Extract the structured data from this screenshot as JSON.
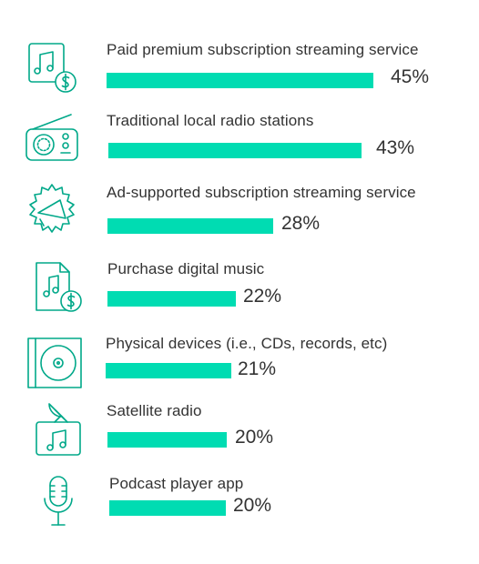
{
  "colors": {
    "bar": "#00dcb2",
    "icon_stroke": "#00a889",
    "text": "#333333"
  },
  "chart_data": {
    "type": "bar",
    "orientation": "horizontal",
    "categories": [
      "Paid premium subscription streaming service",
      "Traditional local radio stations",
      "Ad-supported subscription streaming service",
      "Purchase digital music",
      "Physical devices (i.e., CDs, records, etc)",
      "Satellite radio",
      "Podcast player app"
    ],
    "values": [
      45,
      43,
      28,
      22,
      21,
      20,
      20
    ],
    "value_labels": [
      "45%",
      "43%",
      "28%",
      "22%",
      "21%",
      "20%",
      "20%"
    ],
    "icons": [
      "music-note-dollar-icon",
      "radio-icon",
      "megaphone-icon",
      "digital-music-dollar-icon",
      "cd-icon",
      "satellite-music-icon",
      "microphone-icon"
    ],
    "xlim": [
      0,
      45
    ],
    "grid": false,
    "legend": "none"
  }
}
